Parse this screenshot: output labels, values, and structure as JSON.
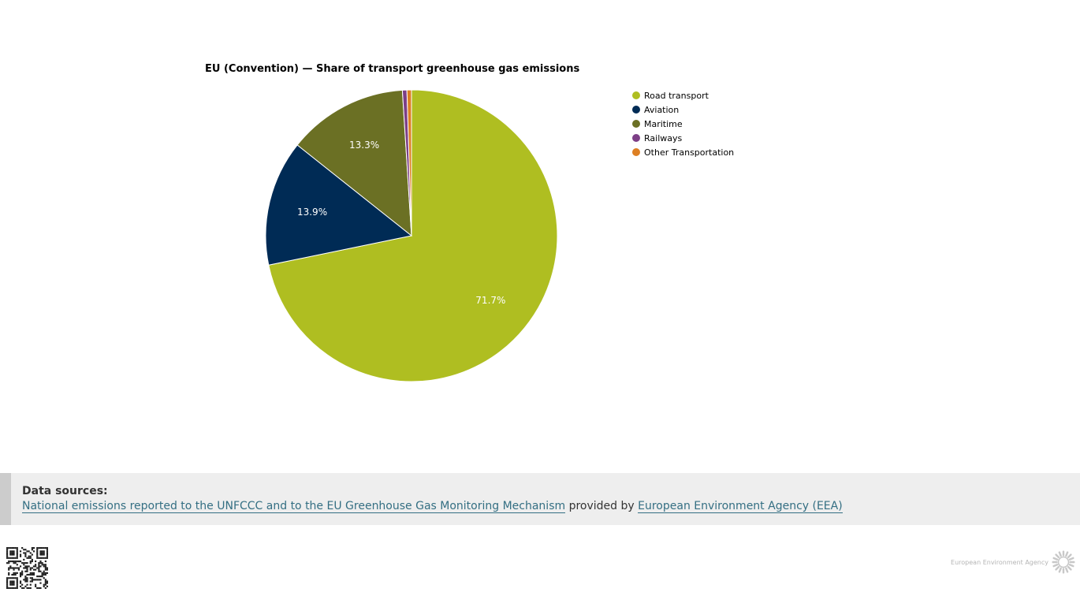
{
  "chart_data": {
    "type": "pie",
    "title": "EU (Convention) — Share of transport greenhouse gas emissions",
    "categories": [
      "Road transport",
      "Aviation",
      "Maritime",
      "Railways",
      "Other Transportation"
    ],
    "values": [
      71.7,
      13.9,
      13.3,
      0.5,
      0.5
    ],
    "labels": [
      "71.7%",
      "13.9%",
      "13.3%",
      "",
      ""
    ],
    "colors": [
      "#afbe21",
      "#002b55",
      "#6b7024",
      "#7d3f87",
      "#dd7f23"
    ],
    "legend_position": "top-right",
    "unit": "%"
  },
  "sources": {
    "title": "Data sources:",
    "link_dataset": "National emissions reported to the UNFCCC and to the EU Greenhouse Gas Monitoring Mechanism",
    "provided_by": "provided by",
    "link_provider": "European Environment Agency (EEA)"
  },
  "footer": {
    "logo_text": "European Environment Agency",
    "qr_icon": "qr-code-icon",
    "logo_icon": "eea-sun-logo-icon"
  }
}
